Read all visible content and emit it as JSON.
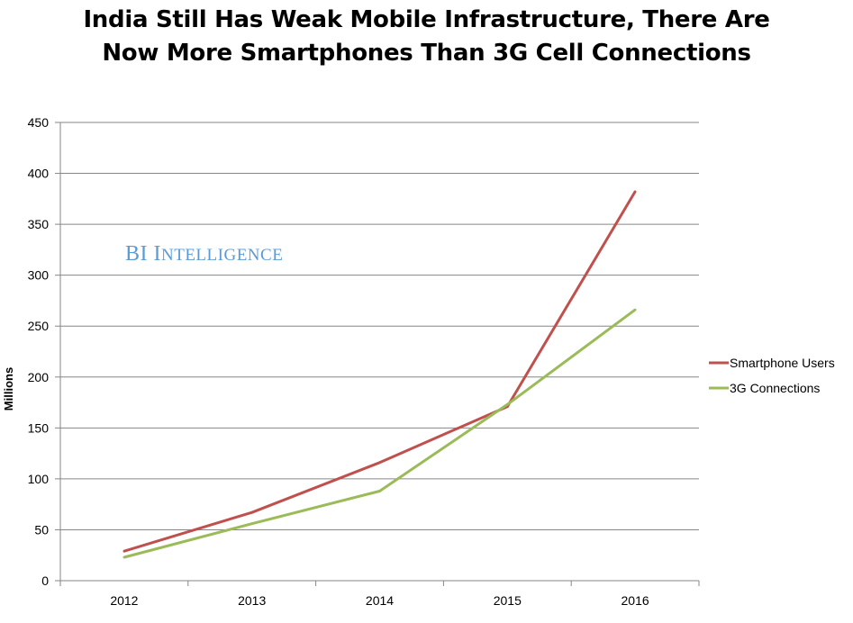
{
  "chart_data": {
    "type": "line",
    "title_lines": [
      "India Still Has Weak Mobile Infrastructure, There Are",
      "Now More Smartphones Than 3G Cell Connections"
    ],
    "ylabel": "Millions",
    "xlabel": "",
    "categories": [
      "2012",
      "2013",
      "2014",
      "2015",
      "2016"
    ],
    "ylim": [
      0,
      450
    ],
    "yticks": [
      0,
      50,
      100,
      150,
      200,
      250,
      300,
      350,
      400,
      450
    ],
    "grid": true,
    "legend_position": "right",
    "watermark": {
      "initial_b": "BI",
      "initial_i": "I",
      "rest": "NTELLIGENCE"
    },
    "series": [
      {
        "name": "Smartphone Users",
        "color": "#c0504d",
        "values": [
          29,
          67,
          116,
          171,
          382
        ]
      },
      {
        "name": "3G Connections",
        "color": "#9bbb59",
        "values": [
          23,
          56,
          88,
          173,
          266
        ]
      }
    ]
  }
}
